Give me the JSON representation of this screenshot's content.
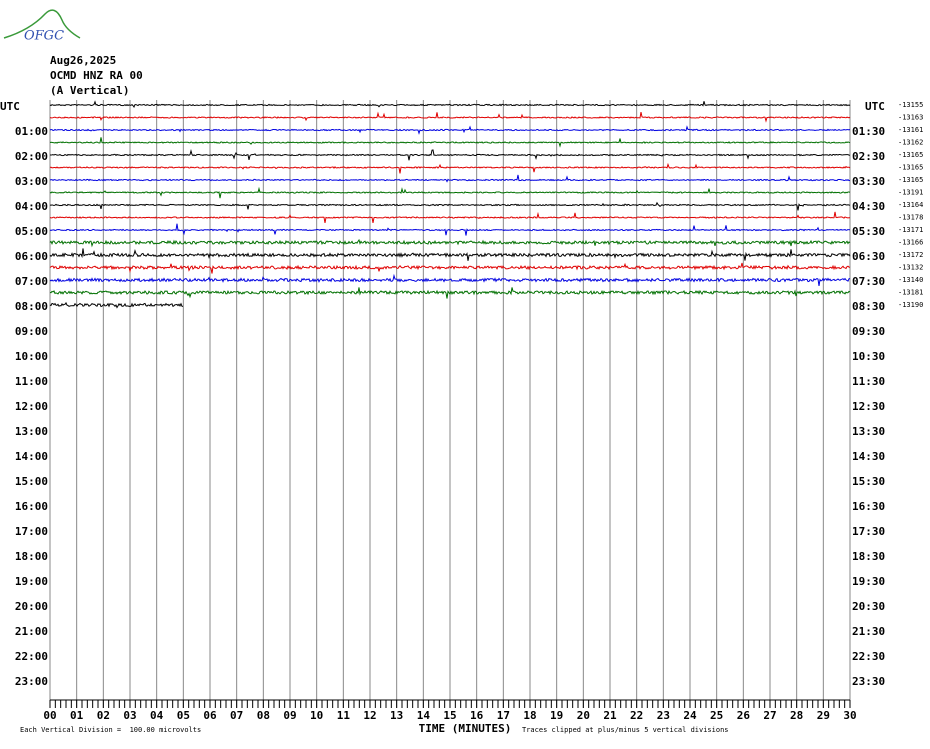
{
  "logo": "OFGC",
  "header": {
    "date": "Aug26,2025",
    "station": "OCMD HNZ RA 00",
    "component": "(A Vertical)"
  },
  "left_axis": {
    "title": "UTC",
    "labels": [
      "01:00",
      "02:00",
      "03:00",
      "04:00",
      "05:00",
      "06:00",
      "07:00",
      "08:00",
      "09:00",
      "10:00",
      "11:00",
      "12:00",
      "13:00",
      "14:00",
      "15:00",
      "16:00",
      "17:00",
      "18:00",
      "19:00",
      "20:00",
      "21:00",
      "22:00",
      "23:00"
    ]
  },
  "right_axis": {
    "title": "UTC",
    "labels": [
      "01:30",
      "02:30",
      "03:30",
      "04:30",
      "05:30",
      "06:30",
      "07:30",
      "08:30",
      "09:30",
      "10:30",
      "11:30",
      "12:30",
      "13:30",
      "14:30",
      "15:30",
      "16:30",
      "17:30",
      "18:30",
      "19:30",
      "20:30",
      "21:30",
      "22:30",
      "23:30"
    ]
  },
  "trace_offsets": [
    "-13155",
    "-13163",
    "-13161",
    "-13162",
    "-13165",
    "-13165",
    "-13165",
    "-13191",
    "-13164",
    "-13178",
    "-13171",
    "-13166",
    "-13172",
    "-13132",
    "-13140",
    "-13181",
    "-13190"
  ],
  "trace_colors": [
    "#000000",
    "#e00000",
    "#0000e0",
    "#007000"
  ],
  "x_axis": {
    "labels": [
      "00",
      "01",
      "02",
      "03",
      "04",
      "05",
      "06",
      "07",
      "08",
      "09",
      "10",
      "11",
      "12",
      "13",
      "14",
      "15",
      "16",
      "17",
      "18",
      "19",
      "20",
      "21",
      "22",
      "23",
      "24",
      "25",
      "26",
      "27",
      "28",
      "29",
      "30"
    ],
    "title": "TIME (MINUTES)"
  },
  "notes": {
    "scale": "Each Vertical Division =  100.00 microvolts",
    "clip": "Traces clipped at plus/minus 5 vertical divisions"
  }
}
